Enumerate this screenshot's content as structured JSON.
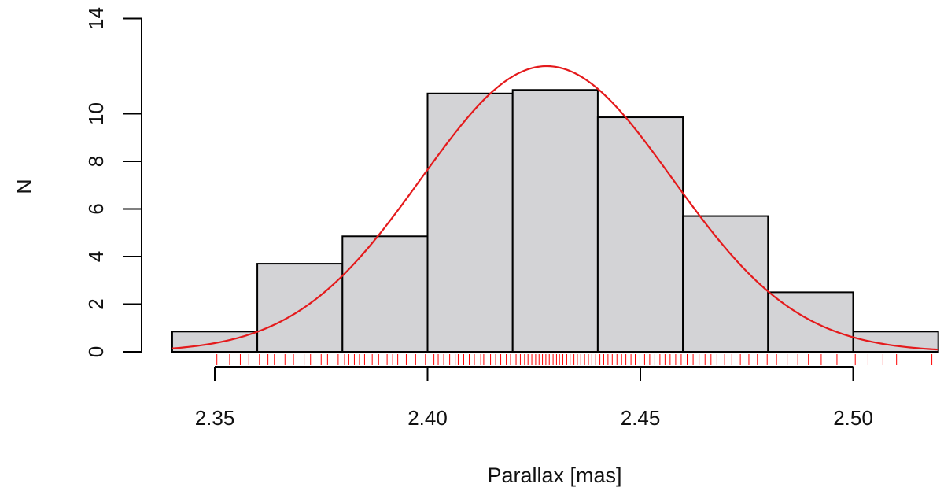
{
  "chart_data": {
    "type": "histogram",
    "title": "",
    "xlabel": "Parallax [mas]",
    "ylabel": "N",
    "xlim": [
      2.34,
      2.52
    ],
    "ylim": [
      0,
      14
    ],
    "x_ticks": [
      2.35,
      2.4,
      2.45,
      2.5
    ],
    "x_tick_labels": [
      "2.35",
      "2.40",
      "2.45",
      "2.50"
    ],
    "y_ticks": [
      0,
      2,
      4,
      6,
      8,
      10,
      14
    ],
    "y_tick_labels": [
      "0",
      "2",
      "4",
      "6",
      "8",
      "10",
      "14"
    ],
    "bins": [
      {
        "x0": 2.34,
        "x1": 2.36,
        "value": 0.85
      },
      {
        "x0": 2.36,
        "x1": 2.38,
        "value": 3.7
      },
      {
        "x0": 2.38,
        "x1": 2.4,
        "value": 4.85
      },
      {
        "x0": 2.4,
        "x1": 2.42,
        "value": 10.85
      },
      {
        "x0": 2.42,
        "x1": 2.44,
        "value": 11.0
      },
      {
        "x0": 2.44,
        "x1": 2.46,
        "value": 9.85
      },
      {
        "x0": 2.46,
        "x1": 2.48,
        "value": 5.7
      },
      {
        "x0": 2.48,
        "x1": 2.5,
        "value": 2.5
      },
      {
        "x0": 2.5,
        "x1": 2.52,
        "value": 0.85
      }
    ],
    "fit_curve": {
      "type": "gaussian",
      "mean": 2.428,
      "sd": 0.0295,
      "peak": 12.0
    },
    "bar_color": "#d3d3d6",
    "curve_color": "#e41a1c",
    "rug_color": "#ff0000",
    "rug": [
      2.3505,
      2.3535,
      2.356,
      2.358,
      2.3605,
      2.3625,
      2.364,
      2.3665,
      2.3685,
      2.371,
      2.3725,
      2.375,
      2.3765,
      2.379,
      2.3805,
      2.3815,
      2.3828,
      2.384,
      2.3852,
      2.387,
      2.3885,
      2.3905,
      2.3918,
      2.393,
      2.395,
      2.3972,
      2.3995,
      2.4015,
      2.4025,
      2.4038,
      2.4052,
      2.4065,
      2.4072,
      2.4085,
      2.4098,
      2.411,
      2.4125,
      2.4132,
      2.4148,
      2.416,
      2.4172,
      2.4185,
      2.4195,
      2.4208,
      2.4218,
      2.4228,
      2.4236,
      2.4245,
      2.4254,
      2.4262,
      2.427,
      2.4278,
      2.4286,
      2.4295,
      2.4303,
      2.431,
      2.4318,
      2.4327,
      2.4335,
      2.4344,
      2.4352,
      2.436,
      2.4369,
      2.4378,
      2.4386,
      2.4395,
      2.4405,
      2.4414,
      2.4424,
      2.4434,
      2.4445,
      2.4456,
      2.4466,
      2.4478,
      2.4488,
      2.4499,
      2.451,
      2.4522,
      2.4534,
      2.4546,
      2.4558,
      2.457,
      2.4583,
      2.4596,
      2.461,
      2.4624,
      2.4638,
      2.4652,
      2.4666,
      2.468,
      2.4698,
      2.4715,
      2.4735,
      2.4755,
      2.4775,
      2.4798,
      2.482,
      2.4845,
      2.487,
      2.4895,
      2.4925,
      2.4962,
      2.5005,
      2.5035,
      2.507,
      2.5102,
      2.5185
    ]
  }
}
